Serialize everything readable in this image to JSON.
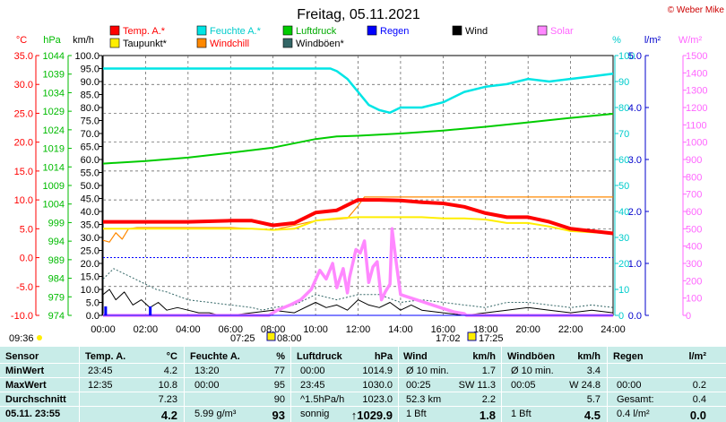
{
  "title": "Freitag, 05.11.2021",
  "copyright": "© Weber Mike",
  "colors": {
    "temp": "#ff0000",
    "feuchte": "#00e5e5",
    "luftdruck": "#00cc00",
    "regen": "#0000ff",
    "wind": "#000000",
    "solar": "#ff88ff",
    "taupunkt": "#ffee00",
    "windchill": "#ff8800",
    "windboeen": "#336666",
    "grid": "#555555",
    "table_bg": "#c8ece8",
    "header_bg": "#c0e4e0"
  },
  "legend": [
    {
      "label": "Temp. A.*",
      "color": "#ff0000"
    },
    {
      "label": "Feuchte A.*",
      "color": "#00e5e5"
    },
    {
      "label": "Luftdruck",
      "color": "#00cc00"
    },
    {
      "label": "Regen",
      "color": "#0000ff"
    },
    {
      "label": "Wind",
      "color": "#000000"
    },
    {
      "label": "Solar",
      "color": "#ff88ff"
    },
    {
      "label": "Taupunkt*",
      "color": "#ffee00"
    },
    {
      "label": "Windchill",
      "color": "#ff8800"
    },
    {
      "label": "Windböen*",
      "color": "#336666"
    }
  ],
  "axes": {
    "temp": {
      "unit": "°C",
      "ticks": [
        "35.0",
        "30.0",
        "25.0",
        "20.0",
        "15.0",
        "10.0",
        "5.0",
        "0.0",
        "-5.0",
        "-10.0"
      ]
    },
    "hpa": {
      "unit": "hPa",
      "ticks": [
        "1044",
        "1039",
        "1034",
        "1029",
        "1024",
        "1019",
        "1014",
        "1009",
        "1004",
        "999",
        "994",
        "989",
        "984",
        "979",
        "974"
      ]
    },
    "kmh": {
      "unit": "km/h",
      "ticks": [
        "100.0",
        "95.0",
        "90.0",
        "85.0",
        "80.0",
        "75.0",
        "70.0",
        "65.0",
        "60.0",
        "55.0",
        "50.0",
        "45.0",
        "40.0",
        "35.0",
        "30.0",
        "25.0",
        "20.0",
        "15.0",
        "10.0",
        "5.0",
        "0.0"
      ]
    },
    "pct": {
      "unit": "%",
      "ticks": [
        "100",
        "90",
        "80",
        "70",
        "60",
        "50",
        "40",
        "30",
        "20",
        "10",
        "0"
      ]
    },
    "rain": {
      "unit": "l/m²",
      "ticks": [
        "5.0",
        "4.0",
        "3.0",
        "2.0",
        "1.0",
        "0.0"
      ]
    },
    "solar": {
      "unit": "W/m²",
      "ticks": [
        "1500",
        "1400",
        "1300",
        "1200",
        "1100",
        "1000",
        "900",
        "800",
        "700",
        "600",
        "500",
        "400",
        "300",
        "200",
        "100",
        "0"
      ]
    },
    "x": {
      "ticks": [
        "00:00",
        "02:00",
        "04:00",
        "06:00",
        "08:00",
        "10:00",
        "12:00",
        "14:00",
        "16:00",
        "18:00",
        "20:00",
        "22:00",
        "24:00"
      ]
    }
  },
  "sun": {
    "rise_time": "07:25",
    "rise_dawn": "08:00",
    "set_time": "17:02",
    "set_dusk": "17:25",
    "moon_left": "09:36"
  },
  "chart_data": {
    "type": "line",
    "xlabel": "",
    "ylabel": "",
    "x_range": [
      0,
      24
    ],
    "series": [
      {
        "name": "Temp. A.*",
        "axis": "temp",
        "x": [
          0,
          2,
          4,
          6,
          7,
          8,
          9,
          10,
          11,
          12,
          13,
          14,
          15,
          16,
          17,
          18,
          19,
          20,
          21,
          22,
          23,
          24
        ],
        "y": [
          6.2,
          6.2,
          6.2,
          6.4,
          6.4,
          5.6,
          6.0,
          7.8,
          8.2,
          10.0,
          10.0,
          9.9,
          9.6,
          9.4,
          8.8,
          7.7,
          7.0,
          7.0,
          6.2,
          5.0,
          4.6,
          4.2
        ]
      },
      {
        "name": "Taupunkt*",
        "axis": "temp",
        "x": [
          0,
          2,
          4,
          6,
          7,
          8,
          9,
          10,
          11,
          12,
          13,
          14,
          15,
          16,
          17,
          18,
          19,
          20,
          21,
          22,
          23,
          24
        ],
        "y": [
          5.0,
          5.0,
          5.0,
          5.0,
          5.0,
          4.8,
          5.0,
          6.4,
          6.8,
          7.0,
          7.0,
          7.0,
          7.0,
          6.8,
          6.8,
          6.6,
          6.0,
          6.0,
          5.4,
          4.6,
          4.4,
          4.2
        ]
      },
      {
        "name": "Windchill",
        "axis": "temp",
        "x": [
          0,
          0.3,
          0.6,
          0.9,
          1.2,
          1.6,
          2,
          4,
          6,
          8,
          10,
          11.5,
          12,
          12.3,
          24
        ],
        "y": [
          3.0,
          2.7,
          4.3,
          3.2,
          5.0,
          5.2,
          5.2,
          5.2,
          5.2,
          4.8,
          6.4,
          6.8,
          9.0,
          10.5,
          10.5
        ]
      },
      {
        "name": "Feuchte A.*",
        "axis": "pct",
        "x": [
          0,
          2,
          4,
          6,
          8,
          10,
          10.7,
          11,
          11.5,
          12,
          12.5,
          13,
          13.5,
          14,
          15,
          16,
          17,
          18,
          19,
          20,
          21,
          22,
          23,
          24
        ],
        "y": [
          95,
          95,
          95,
          95,
          95,
          95,
          95,
          94,
          91,
          86,
          81,
          79,
          78,
          80,
          80,
          82,
          86,
          88,
          89,
          91,
          90,
          91,
          92,
          93
        ]
      },
      {
        "name": "Luftdruck",
        "axis": "hpa",
        "x": [
          0,
          2,
          4,
          6,
          8,
          10,
          11,
          12,
          14,
          16,
          18,
          20,
          22,
          24
        ],
        "y": [
          1014.9,
          1015.6,
          1016.5,
          1017.8,
          1019.2,
          1021.5,
          1022.2,
          1022.4,
          1023.0,
          1023.8,
          1024.8,
          1026.0,
          1027.2,
          1028.3
        ]
      },
      {
        "name": "Windböen*",
        "axis": "kmh",
        "x": [
          0,
          0.5,
          1,
          2,
          2.5,
          3,
          4,
          5,
          6,
          7,
          7.5,
          8,
          9,
          10,
          11,
          12,
          13,
          14,
          15,
          16,
          17,
          18,
          19,
          20,
          21,
          22,
          23,
          24
        ],
        "y": [
          14,
          18,
          16,
          12,
          10,
          9,
          6,
          5,
          4,
          3,
          2,
          3,
          4,
          8,
          6,
          8,
          8,
          5,
          6,
          5,
          4,
          3,
          5,
          5,
          4,
          3,
          4,
          3
        ]
      },
      {
        "name": "Wind",
        "axis": "kmh",
        "x": [
          0,
          0.3,
          0.6,
          1,
          1.4,
          1.8,
          2.2,
          2.6,
          3,
          3.5,
          4,
          4.5,
          5,
          5.5,
          6,
          7,
          8,
          9,
          10,
          10.5,
          11,
          11.5,
          12,
          12.5,
          13,
          13.5,
          14,
          14.5,
          15,
          16,
          17,
          18,
          19,
          20,
          21,
          22,
          23,
          24
        ],
        "y": [
          8,
          10,
          6,
          9,
          4,
          6,
          3,
          5,
          2,
          3,
          2,
          1,
          1,
          0,
          0,
          1,
          2,
          1,
          5,
          3,
          4,
          2,
          6,
          4,
          3,
          5,
          2,
          4,
          2,
          1,
          0,
          1,
          2,
          3,
          2,
          1,
          2,
          1
        ]
      },
      {
        "name": "Solar",
        "axis": "solar",
        "x": [
          0,
          7.8,
          8.2,
          8.8,
          9.3,
          9.8,
          10.2,
          10.5,
          10.8,
          11.0,
          11.3,
          11.5,
          11.6,
          11.9,
          12.1,
          12.3,
          12.5,
          12.7,
          12.9,
          13.1,
          13.3,
          13.5,
          13.6,
          13.8,
          14,
          14.5,
          15,
          15.5,
          16,
          16.5,
          17,
          17.1,
          24
        ],
        "y": [
          0,
          0,
          30,
          60,
          90,
          150,
          260,
          210,
          300,
          160,
          270,
          130,
          220,
          380,
          360,
          430,
          190,
          280,
          310,
          90,
          140,
          180,
          500,
          300,
          120,
          100,
          80,
          60,
          40,
          20,
          10,
          0,
          0
        ]
      },
      {
        "name": "Regen",
        "axis": "rain",
        "x": [
          0,
          24
        ],
        "y": [
          0,
          0
        ]
      }
    ],
    "rain_markers_h": [
      0.1,
      2.2
    ],
    "table": {
      "headers": [
        "Sensor",
        "Temp. A.",
        "°C",
        "Feuchte A.",
        "%",
        "Luftdruck",
        "hPa",
        "Wind",
        "km/h",
        "Windböen",
        "km/h",
        "Regen",
        "l/m²"
      ],
      "rows": [
        {
          "label": "MinWert",
          "t_time": "23:45",
          "t_val": "4.2",
          "f_time": "13:20",
          "f_val": "77",
          "p_time": "00:00",
          "p_val": "1014.9",
          "w_lbl": "Ø 10 min.",
          "w_val": "1.7",
          "g_lbl": "Ø 10 min.",
          "g_val": "3.4",
          "r_lbl": "",
          "r_val": ""
        },
        {
          "label": "MaxWert",
          "t_time": "12:35",
          "t_val": "10.8",
          "f_time": "00:00",
          "f_val": "95",
          "p_time": "23:45",
          "p_val": "1030.0",
          "w_lbl": "00:25",
          "w_val": "SW 11.3",
          "g_lbl": "00:05",
          "g_val": "W 24.8",
          "r_lbl": "00:00",
          "r_val": "0.2"
        },
        {
          "label": "Durchschnitt",
          "t_time": "",
          "t_val": "7.23",
          "f_time": "",
          "f_val": "90",
          "p_time": "^1.5hPa/h",
          "p_val": "1023.0",
          "w_lbl": "52.3 km",
          "w_val": "2.2",
          "g_lbl": "",
          "g_val": "5.7",
          "r_lbl": "Gesamt:",
          "r_val": "0.4"
        },
        {
          "label": "05.11. 23:55",
          "t_time": "",
          "t_val": "4.2",
          "f_time": "5.99 g/m³",
          "f_val": "93",
          "p_time": "sonnig",
          "p_val": "↑1029.9",
          "w_lbl": "1 Bft",
          "w_val": "1.8",
          "g_lbl": "1 Bft",
          "g_val": "4.5",
          "r_lbl": "0.4 l/m²",
          "r_val": "0.0"
        }
      ]
    }
  }
}
